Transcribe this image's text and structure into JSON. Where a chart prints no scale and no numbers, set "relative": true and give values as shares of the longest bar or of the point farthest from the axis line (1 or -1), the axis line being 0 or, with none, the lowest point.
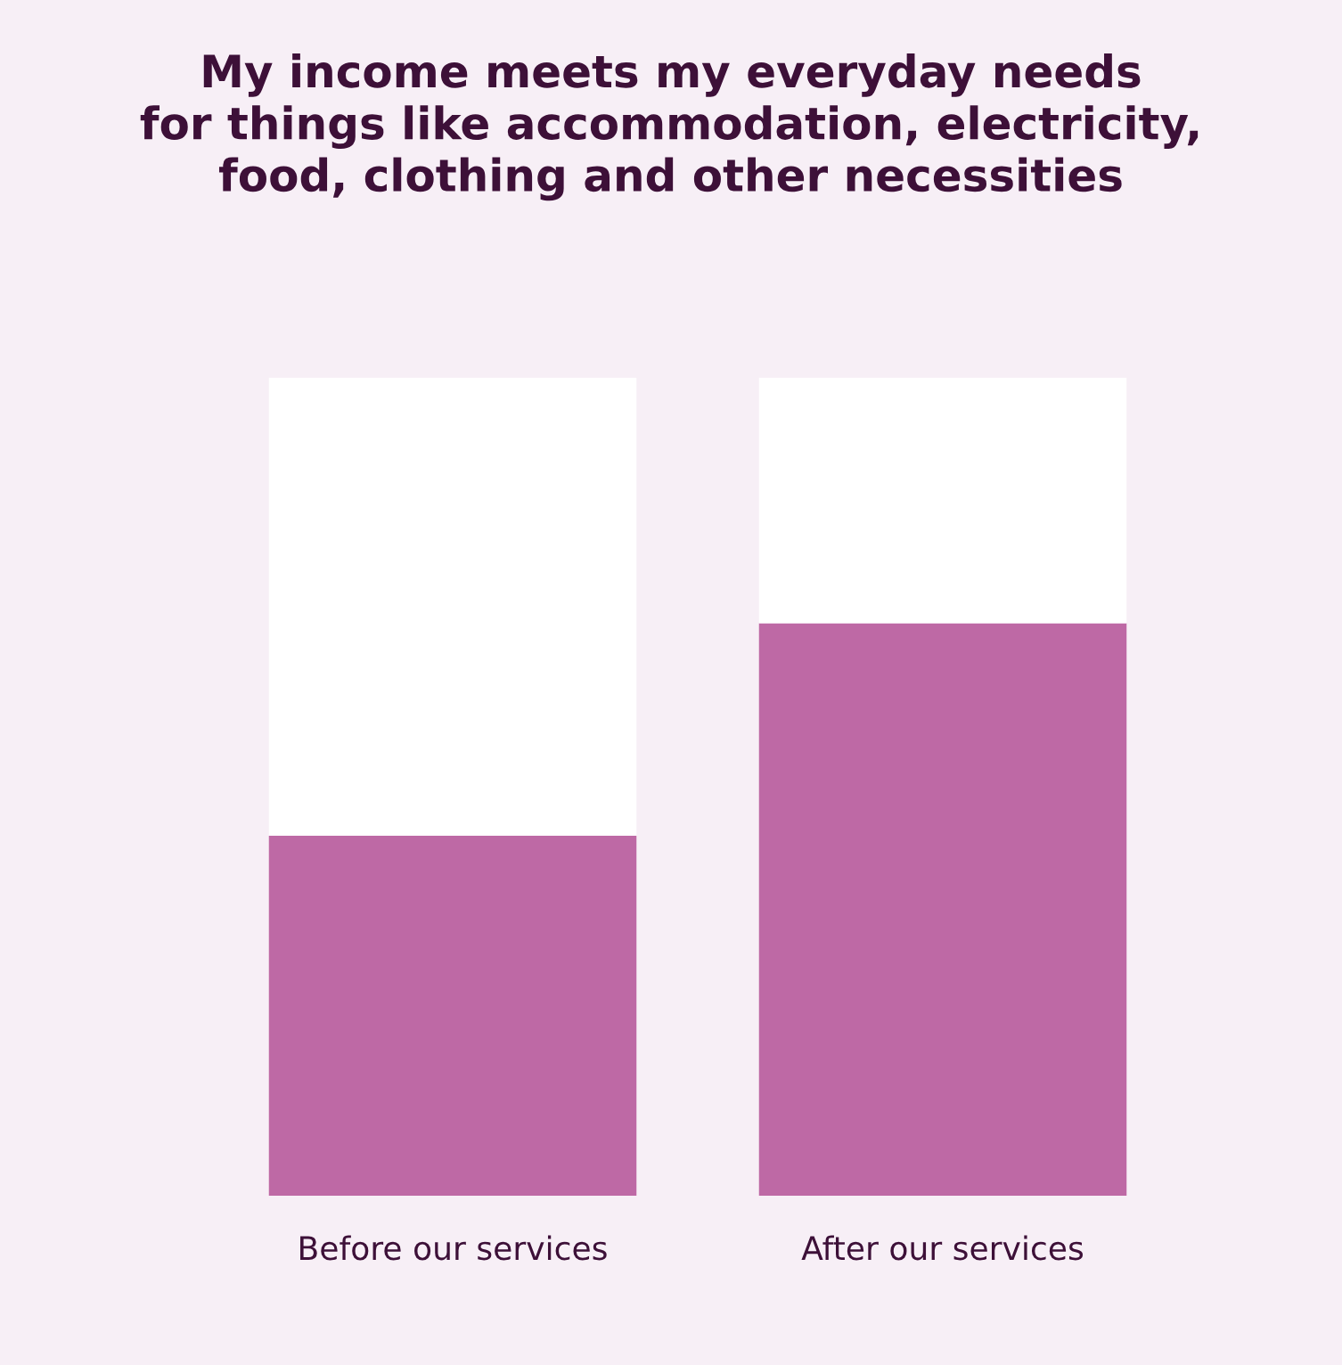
{
  "chart_data": {
    "type": "bar",
    "title": "My income meets my everyday needs\nfor things like accommodation, electricity,\nfood, clothing and other necessities",
    "categories": [
      "Before our services",
      "After our services"
    ],
    "relative": true,
    "stacked": true,
    "series": [
      {
        "color": "#be69a5",
        "values": [
          0.44,
          0.7
        ]
      },
      {
        "color": "#ffffff",
        "values": [
          0.56,
          0.3
        ]
      }
    ]
  }
}
